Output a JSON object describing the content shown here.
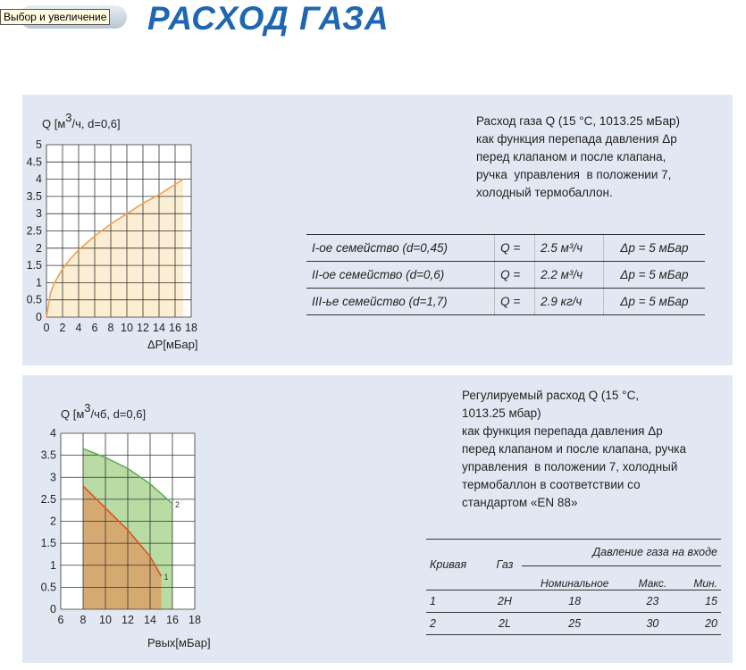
{
  "header": {
    "title": "РАСХОД ГАЗА",
    "tooltip": "Выбор и увеличение"
  },
  "panel1": {
    "description": [
      "Расход газа Q (15 °C, 1013.25 мБар)",
      "как функция перепада давления Δp",
      "перед клапаном и после клапана,",
      "ручка  управления  в положении 7,",
      "холодный термобаллон."
    ],
    "table": [
      {
        "family": "I-ое семейство (d=0,45)",
        "q": "Q =",
        "value": "2.5 м³/ч",
        "dp": "Δp = 5 мБар"
      },
      {
        "family": "II-ое семейство (d=0,6)",
        "q": "Q =",
        "value": "2.2 м³/ч",
        "dp": "Δp = 5 мБар"
      },
      {
        "family": "III-ье семейство (d=1,7)",
        "q": "Q =",
        "value": "2.9 кг/ч",
        "dp": "Δp = 5 мБар"
      }
    ]
  },
  "panel2": {
    "description": [
      "Регулируемый расход Q (15 °C,",
      "1013.25 мбар)",
      "как функция перепада давления Δp",
      "перед клапаном и после клапана, ручка",
      "управления  в положении 7, холодный",
      "термобаллон в соответствии со",
      "стандартом «EN 88»"
    ],
    "table": {
      "col_curve": "Кривая",
      "col_gas": "Газ",
      "group_header": "Давление газа на входе",
      "col_nominal": "Номинальное",
      "col_max": "Макс.",
      "col_min": "Мин.",
      "rows": [
        {
          "curve": "1",
          "gas": "2H",
          "nominal": "18",
          "max": "23",
          "min": "15"
        },
        {
          "curve": "2",
          "gas": "2L",
          "nominal": "25",
          "max": "30",
          "min": "20"
        }
      ]
    }
  },
  "chart_data": [
    {
      "type": "area",
      "ylabel_prefix": "Q  [м",
      "ylabel_sup": "3",
      "ylabel_suffix": "/ч, d=0,6]",
      "xlabel": "ΔP[мБар]",
      "xlim": [
        0,
        18
      ],
      "ylim": [
        0,
        5
      ],
      "x_ticks": [
        0,
        2,
        4,
        6,
        8,
        10,
        12,
        14,
        16,
        18
      ],
      "y_ticks": [
        0,
        0.5,
        1,
        1.5,
        2,
        2.5,
        3,
        3.5,
        4,
        4.5,
        5
      ],
      "grid": true,
      "series": [
        {
          "x": [
            0,
            0.5,
            1,
            2,
            3,
            4,
            6,
            8,
            10,
            12,
            14,
            16,
            17
          ],
          "y": [
            0,
            0.7,
            1.0,
            1.4,
            1.7,
            1.95,
            2.35,
            2.7,
            3.0,
            3.3,
            3.55,
            3.85,
            4.0
          ],
          "line_color": "#f0a050",
          "fill_color": "#fbeed3"
        }
      ]
    },
    {
      "type": "area",
      "ylabel_prefix": "Q [м",
      "ylabel_sup": "3",
      "ylabel_suffix": "/чб, d=0,6]",
      "xlabel": "Рвых[мБар]",
      "xlim": [
        6,
        18
      ],
      "ylim": [
        0,
        4
      ],
      "x_ticks": [
        6,
        8,
        10,
        12,
        14,
        16,
        18
      ],
      "y_ticks": [
        0,
        0.5,
        1,
        1.5,
        2,
        2.5,
        3,
        3.5,
        4
      ],
      "grid": true,
      "series": [
        {
          "name": "2",
          "x": [
            8,
            10,
            12,
            14,
            16
          ],
          "y": [
            3.65,
            3.45,
            3.2,
            2.85,
            2.4
          ],
          "line_color": "#5fae57",
          "fill_color": "#b9dba4"
        },
        {
          "name": "1",
          "x": [
            8,
            10,
            12,
            14,
            15
          ],
          "y": [
            2.8,
            2.3,
            1.8,
            1.2,
            0.75
          ],
          "line_color": "#e0502a",
          "fill_color": "#d4aa70"
        }
      ]
    }
  ]
}
